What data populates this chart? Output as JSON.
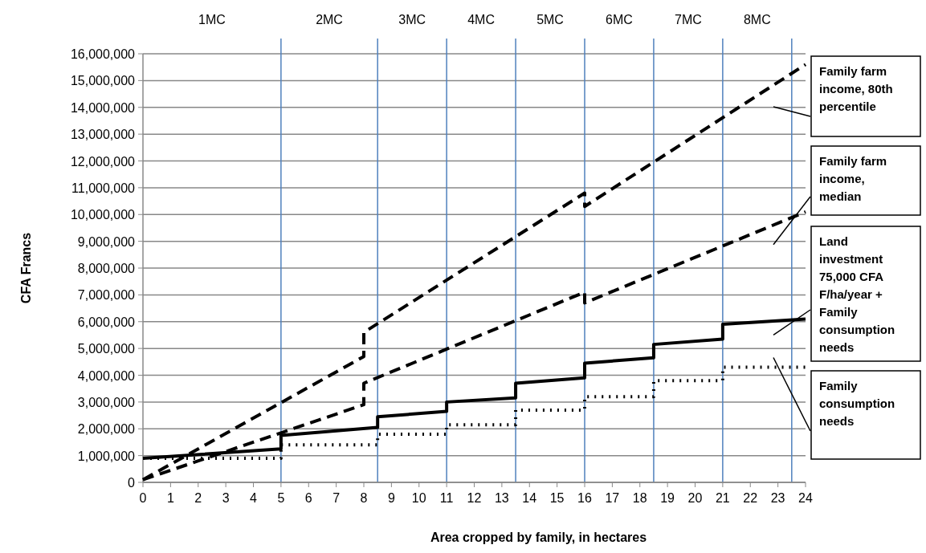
{
  "chart_data": {
    "type": "line",
    "xlabel": "Area cropped by family, in hectares",
    "ylabel": "CFA Francs",
    "xlim": [
      0,
      24
    ],
    "xticks": [
      0,
      1,
      2,
      3,
      4,
      5,
      6,
      7,
      8,
      9,
      10,
      11,
      12,
      13,
      14,
      15,
      16,
      17,
      18,
      19,
      20,
      21,
      22,
      23,
      24
    ],
    "ylim": [
      0,
      16000000
    ],
    "yticks": [
      {
        "value": 0,
        "label": "0"
      },
      {
        "value": 1000000,
        "label": "1,000,000"
      },
      {
        "value": 2000000,
        "label": "2,000,000"
      },
      {
        "value": 3000000,
        "label": "3,000,000"
      },
      {
        "value": 4000000,
        "label": "4,000,000"
      },
      {
        "value": 5000000,
        "label": "5,000,000"
      },
      {
        "value": 6000000,
        "label": "6,000,000"
      },
      {
        "value": 7000000,
        "label": "7,000,000"
      },
      {
        "value": 8000000,
        "label": "8,000,000"
      },
      {
        "value": 9000000,
        "label": "9,000,000"
      },
      {
        "value": 10000000,
        "label": "10,000,000"
      },
      {
        "value": 11000000,
        "label": "11,000,000"
      },
      {
        "value": 12000000,
        "label": "12,000,000"
      },
      {
        "value": 13000000,
        "label": "13,000,000"
      },
      {
        "value": 14000000,
        "label": "14,000,000"
      },
      {
        "value": 15000000,
        "label": "15,000,000"
      },
      {
        "value": 16000000,
        "label": "16,000,000"
      }
    ],
    "grid": "y",
    "legend": "right",
    "series": [
      {
        "name": "Family farm income, 80th percentile",
        "color": "#000000",
        "line_style": "dashed",
        "x": [
          0,
          8,
          8,
          16,
          16,
          24
        ],
        "values": [
          100000,
          4700000,
          5600000,
          10800000,
          10300000,
          15600000
        ]
      },
      {
        "name": "Family farm income, median",
        "color": "#000000",
        "line_style": "dashed",
        "x": [
          0,
          8,
          8,
          16,
          16,
          24
        ],
        "values": [
          100000,
          2900000,
          3700000,
          7100000,
          6700000,
          10100000
        ]
      },
      {
        "name": "Land investment 75,000 CFA F/ha/year + Family consumption needs",
        "color": "#000000",
        "line_style": "solid",
        "x": [
          0,
          5,
          5,
          8.5,
          8.5,
          11,
          11,
          13.5,
          13.5,
          16,
          16,
          18.5,
          18.5,
          21,
          21,
          24
        ],
        "values": [
          900000,
          1250000,
          1750000,
          2050000,
          2450000,
          2650000,
          3000000,
          3150000,
          3700000,
          3900000,
          4450000,
          4650000,
          5150000,
          5350000,
          5900000,
          6100000
        ]
      },
      {
        "name": "Family consumption needs",
        "color": "#000000",
        "line_style": "dotted",
        "x": [
          0,
          5,
          5,
          8.5,
          8.5,
          11,
          11,
          13.5,
          13.5,
          16,
          16,
          18.5,
          18.5,
          21,
          21,
          24
        ],
        "values": [
          900000,
          900000,
          1400000,
          1400000,
          1800000,
          1800000,
          2150000,
          2150000,
          2700000,
          2700000,
          3200000,
          3200000,
          3800000,
          3800000,
          4300000,
          4300000
        ]
      }
    ],
    "ref_lines": [
      {
        "axis": "x",
        "value": 5,
        "color": "#4f81bd"
      },
      {
        "axis": "x",
        "value": 8.5,
        "color": "#4f81bd"
      },
      {
        "axis": "x",
        "value": 11,
        "color": "#4f81bd"
      },
      {
        "axis": "x",
        "value": 13.5,
        "color": "#4f81bd"
      },
      {
        "axis": "x",
        "value": 16,
        "color": "#4f81bd"
      },
      {
        "axis": "x",
        "value": 18.5,
        "color": "#4f81bd"
      },
      {
        "axis": "x",
        "value": 21,
        "color": "#4f81bd"
      },
      {
        "axis": "x",
        "value": 23.5,
        "color": "#4f81bd"
      }
    ],
    "annotations": [
      "1MC",
      "2MC",
      "3MC",
      "4MC",
      "5MC",
      "6MC",
      "7MC",
      "8MC"
    ]
  }
}
